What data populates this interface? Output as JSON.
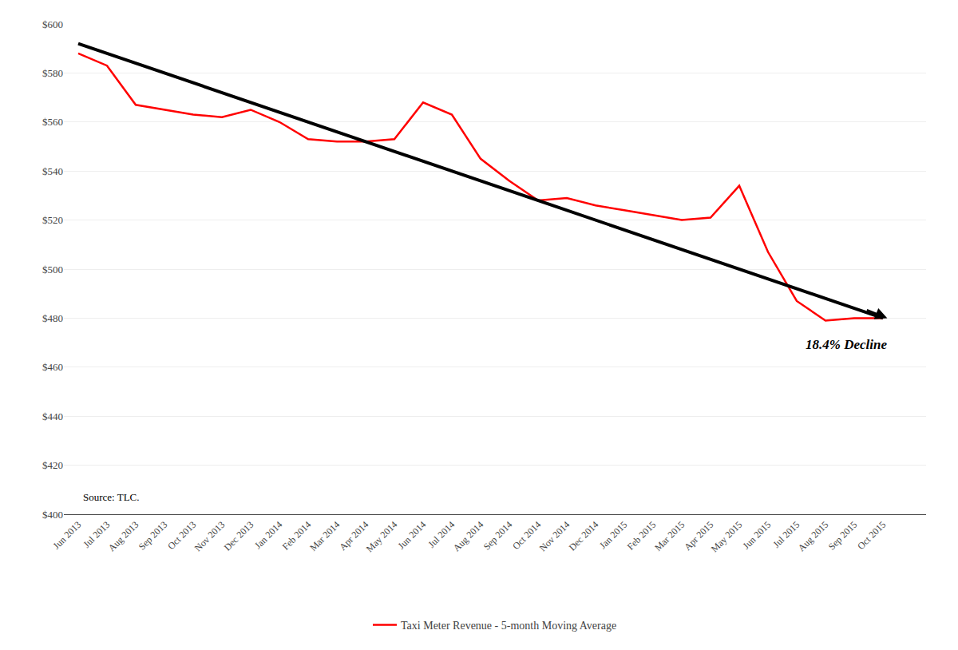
{
  "chart_data": {
    "type": "line",
    "categories": [
      "Jun 2013",
      "Jul 2013",
      "Aug 2013",
      "Sep 2013",
      "Oct 2013",
      "Nov 2013",
      "Dec 2013",
      "Jan 2014",
      "Feb 2014",
      "Mar 2014",
      "Apr 2014",
      "May 2014",
      "Jun 2014",
      "Jul 2014",
      "Aug 2014",
      "Sep 2014",
      "Oct 2014",
      "Nov 2014",
      "Dec 2014",
      "Jan 2015",
      "Feb 2015",
      "Mar 2015",
      "Apr 2015",
      "May 2015",
      "Jun 2015",
      "Jul 2015",
      "Aug 2015",
      "Sep 2015",
      "Oct 2015"
    ],
    "series": [
      {
        "name": "Taxi Meter Revenue - 5-month Moving Average",
        "color": "#ff0000",
        "values": [
          588,
          583,
          567,
          565,
          563,
          562,
          565,
          560,
          553,
          552,
          552,
          553,
          568,
          563,
          545,
          536,
          528,
          529,
          526,
          524,
          522,
          520,
          521,
          534,
          507,
          487,
          479,
          480,
          480
        ]
      },
      {
        "color": "#000000",
        "values": [
          592,
          null,
          null,
          null,
          null,
          null,
          null,
          null,
          null,
          null,
          null,
          null,
          null,
          null,
          null,
          null,
          null,
          null,
          null,
          null,
          null,
          null,
          null,
          null,
          null,
          null,
          null,
          null,
          480
        ]
      }
    ],
    "annotations": [
      "18.4% Decline",
      "Source: TLC."
    ],
    "ylim": [
      400,
      600
    ],
    "yticks": [
      {
        "value": 400,
        "label": "$400"
      },
      {
        "value": 420,
        "label": "$420"
      },
      {
        "value": 440,
        "label": "$440"
      },
      {
        "value": 460,
        "label": "$460"
      },
      {
        "value": 480,
        "label": "$480"
      },
      {
        "value": 500,
        "label": "$500"
      },
      {
        "value": 520,
        "label": "$520"
      },
      {
        "value": 540,
        "label": "$540"
      },
      {
        "value": 560,
        "label": "$560"
      },
      {
        "value": 580,
        "label": "$580"
      },
      {
        "value": 600,
        "label": "$600"
      }
    ],
    "grid": true,
    "legend": "bottom"
  }
}
